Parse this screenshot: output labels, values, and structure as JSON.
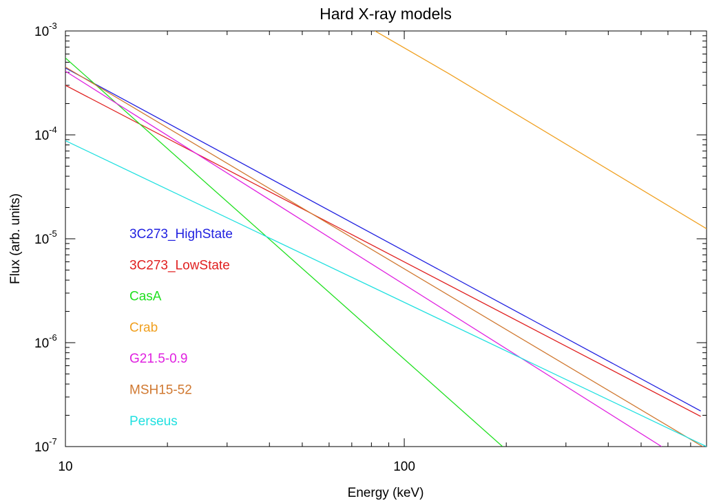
{
  "chart_data": {
    "type": "line",
    "title": "Hard X-ray models",
    "xlabel": "Energy (keV)",
    "ylabel": "Flux (arb. units)",
    "x_scale": "log",
    "y_scale": "log",
    "xlim": [
      10,
      780
    ],
    "ylim": [
      1e-07,
      0.001
    ],
    "x_ticks": [
      {
        "value": 10,
        "label": "10"
      },
      {
        "value": 100,
        "label": "100"
      }
    ],
    "y_ticks": [
      {
        "value": 0.001,
        "base": "10",
        "exp": "-3"
      },
      {
        "value": 0.0001,
        "base": "10",
        "exp": "-4"
      },
      {
        "value": 1e-05,
        "base": "10",
        "exp": "-5"
      },
      {
        "value": 1e-06,
        "base": "10",
        "exp": "-6"
      },
      {
        "value": 1e-07,
        "base": "10",
        "exp": "-7"
      }
    ],
    "legend_position": "left-center",
    "series": [
      {
        "name": "3C273_HighState",
        "color": "#2020e0",
        "x": [
          10,
          750
        ],
        "y": [
          0.00044,
          2.2e-07
        ]
      },
      {
        "name": "3C273_LowState",
        "color": "#e02020",
        "x": [
          10,
          750
        ],
        "y": [
          0.0003,
          1.95e-07
        ]
      },
      {
        "name": "CasA",
        "color": "#20e020",
        "x": [
          10,
          195
        ],
        "y": [
          0.00055,
          1e-07
        ]
      },
      {
        "name": "Crab",
        "color": "#f0a020",
        "x": [
          82,
          135,
          780
        ],
        "y": [
          0.001,
          0.00039,
          1.25e-05
        ]
      },
      {
        "name": "G21.5-0.9",
        "color": "#e020e0",
        "x": [
          10,
          575
        ],
        "y": [
          0.00041,
          1e-07
        ]
      },
      {
        "name": "MSH15-52",
        "color": "#d07830",
        "x": [
          10,
          760
        ],
        "y": [
          0.00045,
          1e-07
        ]
      },
      {
        "name": "Perseus",
        "color": "#20e0e0",
        "x": [
          10,
          780
        ],
        "y": [
          8.8e-05,
          1e-07
        ]
      }
    ]
  }
}
